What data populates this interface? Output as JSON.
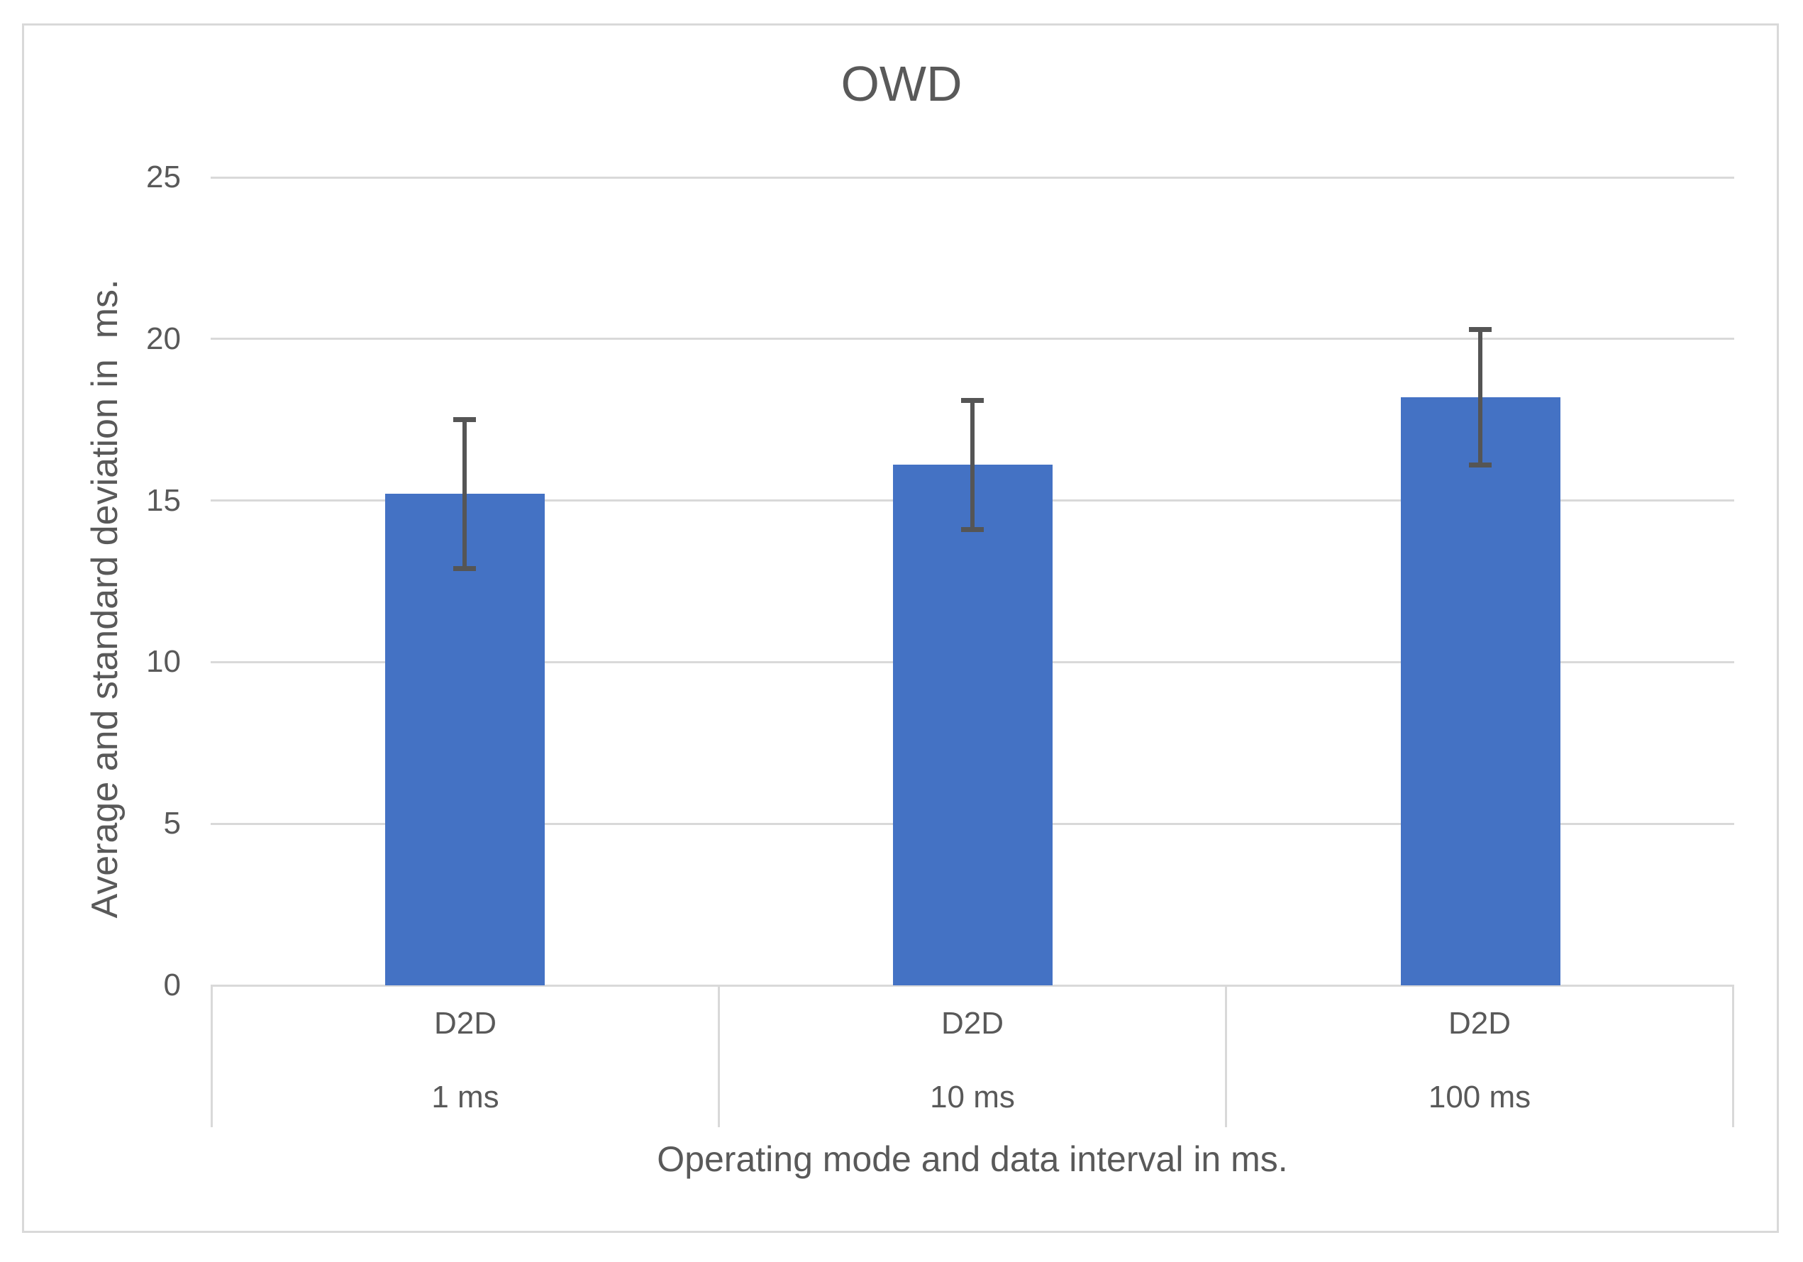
{
  "chart_data": {
    "type": "bar",
    "title": "OWD",
    "ylabel": "Average and standard deviation in  ms.",
    "xlabel": "Operating mode and data interval in ms.",
    "categories": [
      {
        "mode": "D2D",
        "interval": "1 ms"
      },
      {
        "mode": "D2D",
        "interval": "10 ms"
      },
      {
        "mode": "D2D",
        "interval": "100 ms"
      }
    ],
    "series": [
      {
        "name": "OWD",
        "values": [
          15.2,
          16.1,
          18.2
        ],
        "error_plus": [
          2.3,
          2.0,
          2.1
        ],
        "error_minus": [
          2.3,
          2.0,
          2.1
        ]
      }
    ],
    "ylim": [
      0,
      25
    ],
    "ytick_step": 5,
    "ytick_labels": [
      "0",
      "5",
      "10",
      "15",
      "20",
      "25"
    ],
    "grid": true,
    "legend": false,
    "colors": {
      "bar": "#4472C4",
      "error_bar": "#555555",
      "gridline": "#D9D9D9",
      "text": "#595959",
      "frame_border": "#D9D9D9",
      "background": "#FFFFFF"
    }
  }
}
